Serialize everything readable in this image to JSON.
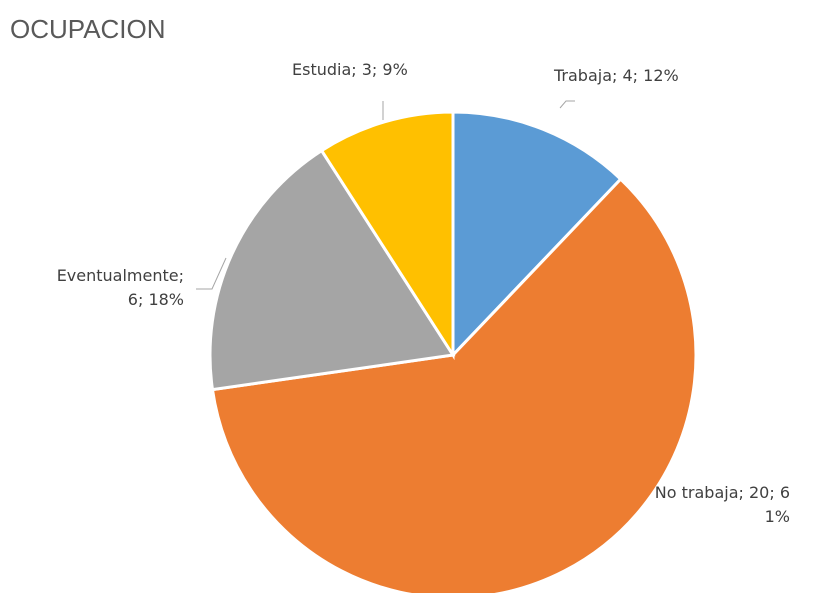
{
  "chart_data": {
    "type": "pie",
    "title": "OCUPACION",
    "values": [
      4,
      20,
      6,
      3
    ],
    "value_labels": [
      "Trabaja; 4; 12%",
      "No trabaja; 20; 61%",
      "Eventualmente; 6; 18%",
      "Estudia; 3; 9%"
    ],
    "colors": [
      "#5b9bd5",
      "#ed7d31",
      "#a5a5a5",
      "#ffc000"
    ]
  }
}
